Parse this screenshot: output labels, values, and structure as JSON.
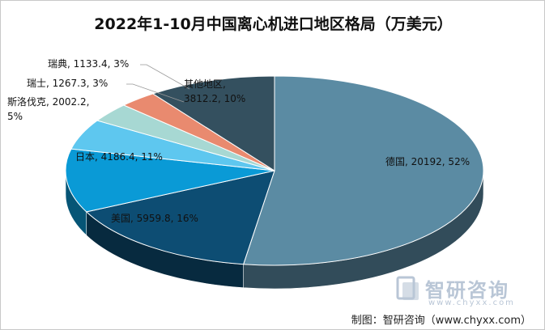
{
  "chart_data": {
    "type": "pie",
    "title": "2022年1-10月中国离心机进口地区格局（万美元）",
    "slices": [
      {
        "name": "德国",
        "value": 20192,
        "percent": "52%",
        "label": "德国, 20192, 52%",
        "color": "#5b8ba3"
      },
      {
        "name": "美国",
        "value": 5959.8,
        "percent": "16%",
        "label": "美国, 5959.8, 16%",
        "color": "#0d4d73"
      },
      {
        "name": "日本",
        "value": 4186.4,
        "percent": "11%",
        "label": "日本, 4186.4, 11%",
        "color": "#0a9ad6"
      },
      {
        "name": "斯洛伐克",
        "value": 2002.2,
        "percent": "5%",
        "label": "斯洛伐克, 2002.2, 5%",
        "color": "#5ec7ef"
      },
      {
        "name": "瑞士",
        "value": 1267.3,
        "percent": "3%",
        "label": "瑞士, 1267.3, 3%",
        "color": "#a7d8d3"
      },
      {
        "name": "瑞典",
        "value": 1133.4,
        "percent": "3%",
        "label": "瑞典, 1133.4, 3%",
        "color": "#e98a6f"
      },
      {
        "name": "其他地区",
        "value": 3812.2,
        "percent": "10%",
        "label": "其他地区, 3812.2, 10%",
        "color": "#34505f"
      }
    ]
  },
  "watermark": {
    "brand": "智研咨询",
    "url": "www.chyxx.com"
  },
  "source_note": "制图：智研咨询（www.chyxx.com）"
}
